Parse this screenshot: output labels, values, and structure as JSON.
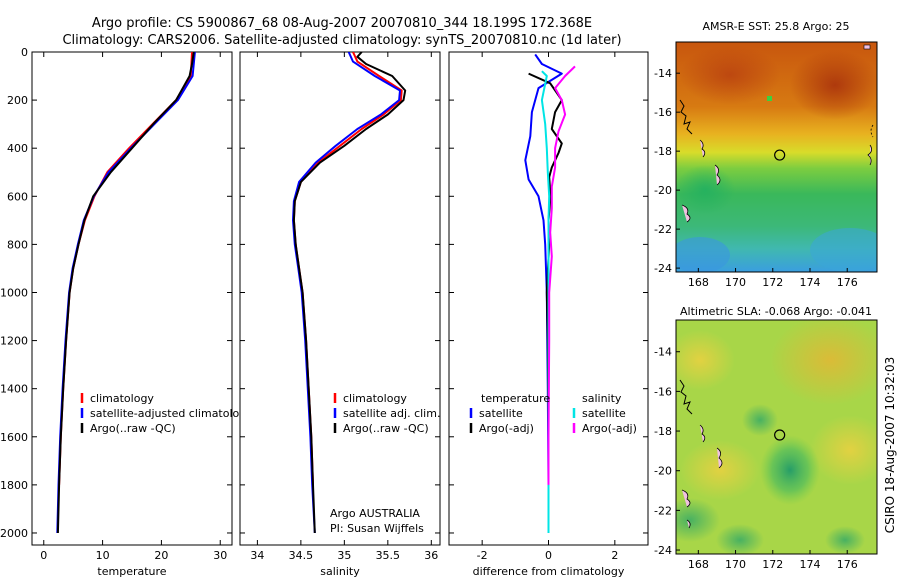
{
  "header": {
    "line1": "Argo profile: CS 5900867_68 08-Aug-2007 20070810_344 18.199S 172.368E",
    "line2": "Climatology: CARS2006. Satellite-adjusted climatology: synTS_20070810.nc (1d later)"
  },
  "colors": {
    "climatology": "#ff0000",
    "satellite": "#0000ff",
    "argo": "#000000",
    "argo_salinity_diff": "#ff00ff",
    "satellite_salinity_diff": "#00e5e5"
  },
  "side_text": "CSIRO 18-Aug-2007 10:32:03",
  "chart_data": [
    {
      "type": "line",
      "xlabel": "temperature",
      "ylabel": "",
      "xlim": [
        -2,
        32
      ],
      "ylim": [
        2050,
        0
      ],
      "xticks": [
        0,
        10,
        20,
        30
      ],
      "yticks": [
        0,
        200,
        400,
        600,
        800,
        1000,
        1200,
        1400,
        1600,
        1800,
        2000
      ],
      "legend": [
        "climatology",
        "satellite-adjusted climatology",
        "Argo(..raw -QC)"
      ],
      "legend_position": "lower-right",
      "series": [
        {
          "name": "climatology",
          "color": "#ff0000",
          "points": [
            [
              25.2,
              0
            ],
            [
              25.0,
              100
            ],
            [
              22.5,
              200
            ],
            [
              18.5,
              300
            ],
            [
              14.5,
              400
            ],
            [
              10.8,
              500
            ],
            [
              8.6,
              600
            ],
            [
              7.0,
              700
            ],
            [
              5.9,
              800
            ],
            [
              5.0,
              900
            ],
            [
              4.4,
              1000
            ],
            [
              3.8,
              1200
            ],
            [
              3.3,
              1400
            ],
            [
              2.9,
              1600
            ],
            [
              2.6,
              1800
            ]
          ]
        },
        {
          "name": "satellite-adjusted climatology",
          "color": "#0000ff",
          "points": [
            [
              25.7,
              0
            ],
            [
              25.3,
              100
            ],
            [
              22.8,
              200
            ],
            [
              18.8,
              300
            ],
            [
              14.8,
              400
            ],
            [
              11.0,
              500
            ],
            [
              8.5,
              600
            ],
            [
              6.8,
              700
            ],
            [
              5.8,
              800
            ],
            [
              4.9,
              900
            ],
            [
              4.3,
              1000
            ],
            [
              3.7,
              1200
            ],
            [
              3.2,
              1400
            ],
            [
              2.8,
              1600
            ],
            [
              2.5,
              1800
            ],
            [
              2.3,
              2000
            ]
          ]
        },
        {
          "name": "Argo(..raw -QC)",
          "color": "#000000",
          "points": [
            [
              25.5,
              0
            ],
            [
              25.2,
              50
            ],
            [
              24.8,
              100
            ],
            [
              22.5,
              200
            ],
            [
              18.6,
              300
            ],
            [
              15.0,
              400
            ],
            [
              11.4,
              500
            ],
            [
              8.4,
              600
            ],
            [
              6.9,
              700
            ],
            [
              5.9,
              800
            ],
            [
              5.0,
              900
            ],
            [
              4.4,
              1000
            ],
            [
              3.8,
              1200
            ],
            [
              3.3,
              1400
            ],
            [
              2.9,
              1600
            ],
            [
              2.6,
              1800
            ],
            [
              2.4,
              2000
            ]
          ]
        }
      ]
    },
    {
      "type": "line",
      "xlabel": "salinity",
      "ylabel": "",
      "xlim": [
        33.8,
        36.1
      ],
      "ylim": [
        2050,
        0
      ],
      "xticks": [
        34,
        34.5,
        35,
        35.5,
        36
      ],
      "yticks": [
        0,
        200,
        400,
        600,
        800,
        1000,
        1200,
        1400,
        1600,
        1800,
        2000
      ],
      "legend": [
        "climatology",
        "satellite adj. clim.",
        "Argo(..raw -QC)"
      ],
      "legend_position": "lower-right",
      "annotation": [
        "Argo AUSTRALIA",
        "PI: Susan Wijffels"
      ],
      "series": [
        {
          "name": "climatology",
          "color": "#ff0000",
          "points": [
            [
              35.1,
              0
            ],
            [
              35.15,
              40
            ],
            [
              35.4,
              100
            ],
            [
              35.66,
              160
            ],
            [
              35.65,
              200
            ],
            [
              35.45,
              260
            ],
            [
              35.2,
              320
            ],
            [
              34.95,
              390
            ],
            [
              34.7,
              460
            ],
            [
              34.5,
              540
            ],
            [
              34.43,
              620
            ],
            [
              34.42,
              700
            ],
            [
              34.44,
              800
            ],
            [
              34.48,
              900
            ],
            [
              34.52,
              1000
            ],
            [
              34.56,
              1200
            ],
            [
              34.59,
              1400
            ],
            [
              34.62,
              1600
            ],
            [
              34.64,
              1800
            ]
          ]
        },
        {
          "name": "satellite adj. clim.",
          "color": "#0000ff",
          "points": [
            [
              35.05,
              0
            ],
            [
              35.1,
              40
            ],
            [
              35.35,
              100
            ],
            [
              35.64,
              160
            ],
            [
              35.63,
              200
            ],
            [
              35.42,
              260
            ],
            [
              35.15,
              320
            ],
            [
              34.9,
              390
            ],
            [
              34.67,
              460
            ],
            [
              34.48,
              540
            ],
            [
              34.42,
              620
            ],
            [
              34.41,
              700
            ],
            [
              34.43,
              800
            ],
            [
              34.47,
              900
            ],
            [
              34.51,
              1000
            ],
            [
              34.55,
              1200
            ],
            [
              34.58,
              1400
            ],
            [
              34.61,
              1600
            ],
            [
              34.63,
              1800
            ],
            [
              34.66,
              2000
            ]
          ]
        },
        {
          "name": "Argo(..raw -QC)",
          "color": "#000000",
          "points": [
            [
              35.2,
              0
            ],
            [
              35.15,
              20
            ],
            [
              35.25,
              50
            ],
            [
              35.55,
              100
            ],
            [
              35.7,
              160
            ],
            [
              35.68,
              200
            ],
            [
              35.5,
              260
            ],
            [
              35.25,
              320
            ],
            [
              35.0,
              390
            ],
            [
              34.72,
              460
            ],
            [
              34.5,
              540
            ],
            [
              34.43,
              620
            ],
            [
              34.42,
              700
            ],
            [
              34.44,
              800
            ],
            [
              34.48,
              900
            ],
            [
              34.52,
              1000
            ],
            [
              34.56,
              1200
            ],
            [
              34.59,
              1400
            ],
            [
              34.62,
              1600
            ],
            [
              34.64,
              1800
            ],
            [
              34.66,
              2000
            ]
          ]
        }
      ]
    },
    {
      "type": "line",
      "xlabel": "difference from climatology",
      "ylabel": "",
      "xlim": [
        -3,
        3
      ],
      "ylim": [
        2050,
        0
      ],
      "xticks": [
        -2,
        0,
        2
      ],
      "yticks": [
        0,
        200,
        400,
        600,
        800,
        1000,
        1200,
        1400,
        1600,
        1800,
        2000
      ],
      "legend_temperature_title": "temperature",
      "legend_temperature": [
        "satellite",
        "Argo(-adj)"
      ],
      "legend_salinity_title": "salinity",
      "legend_salinity": [
        "satellite",
        "Argo(-adj)"
      ],
      "legend_position": "lower-center",
      "series": [
        {
          "name": "temperature satellite",
          "color": "#0000ff",
          "points": [
            [
              -0.4,
              10
            ],
            [
              -0.2,
              50
            ],
            [
              0.4,
              90
            ],
            [
              -0.3,
              150
            ],
            [
              -0.5,
              250
            ],
            [
              -0.55,
              350
            ],
            [
              -0.7,
              450
            ],
            [
              -0.6,
              530
            ],
            [
              -0.3,
              600
            ],
            [
              -0.15,
              700
            ],
            [
              -0.1,
              800
            ],
            [
              -0.05,
              1000
            ],
            [
              -0.02,
              1400
            ],
            [
              0.0,
              1800
            ],
            [
              0.0,
              2000
            ]
          ]
        },
        {
          "name": "temperature Argo(-adj)",
          "color": "#000000",
          "points": [
            [
              -0.6,
              90
            ],
            [
              0.05,
              130
            ],
            [
              0.4,
              200
            ],
            [
              0.2,
              250
            ],
            [
              0.1,
              320
            ],
            [
              0.4,
              380
            ],
            [
              0.3,
              420
            ],
            [
              0.1,
              480
            ],
            [
              0.02,
              520
            ],
            [
              0.06,
              600
            ],
            [
              0.0,
              700
            ],
            [
              0.02,
              800
            ],
            [
              -0.05,
              1000
            ],
            [
              -0.02,
              1200
            ],
            [
              0.0,
              1600
            ],
            [
              0.0,
              2000
            ]
          ]
        },
        {
          "name": "salinity satellite",
          "color": "#00e5e5",
          "points": [
            [
              -0.2,
              80
            ],
            [
              -0.05,
              100
            ],
            [
              -0.2,
              200
            ],
            [
              -0.1,
              300
            ],
            [
              -0.05,
              400
            ],
            [
              -0.02,
              500
            ],
            [
              0.02,
              600
            ],
            [
              0.0,
              700
            ],
            [
              0.0,
              1000
            ],
            [
              0.0,
              1500
            ],
            [
              0.0,
              2000
            ]
          ]
        },
        {
          "name": "salinity Argo(-adj)",
          "color": "#ff00ff",
          "points": [
            [
              0.8,
              60
            ],
            [
              0.5,
              100
            ],
            [
              0.2,
              150
            ],
            [
              0.4,
              200
            ],
            [
              0.5,
              260
            ],
            [
              0.3,
              330
            ],
            [
              0.2,
              400
            ],
            [
              0.2,
              480
            ],
            [
              0.1,
              560
            ],
            [
              0.1,
              650
            ],
            [
              0.05,
              750
            ],
            [
              0.1,
              850
            ],
            [
              0.02,
              1000
            ],
            [
              0.02,
              1200
            ],
            [
              0.0,
              1600
            ],
            [
              0.0,
              1800
            ]
          ]
        }
      ]
    },
    {
      "type": "heatmap",
      "title": "AMSR-E SST: 25.8 Argo: 25",
      "xlim": [
        166.8,
        177.6
      ],
      "ylim": [
        -24.2,
        -12.4
      ],
      "xticks": [
        168,
        170,
        172,
        174,
        176
      ],
      "yticks": [
        -14,
        -16,
        -18,
        -20,
        -22,
        -24
      ],
      "marker": [
        172.37,
        -18.2
      ]
    },
    {
      "type": "heatmap",
      "title": "Altimetric SLA: -0.068 Argo: -0.041",
      "xlim": [
        166.8,
        177.6
      ],
      "ylim": [
        -24.2,
        -12.4
      ],
      "xticks": [
        168,
        170,
        172,
        174,
        176
      ],
      "yticks": [
        -14,
        -16,
        -18,
        -20,
        -22,
        -24
      ],
      "marker": [
        172.37,
        -18.2
      ]
    }
  ]
}
